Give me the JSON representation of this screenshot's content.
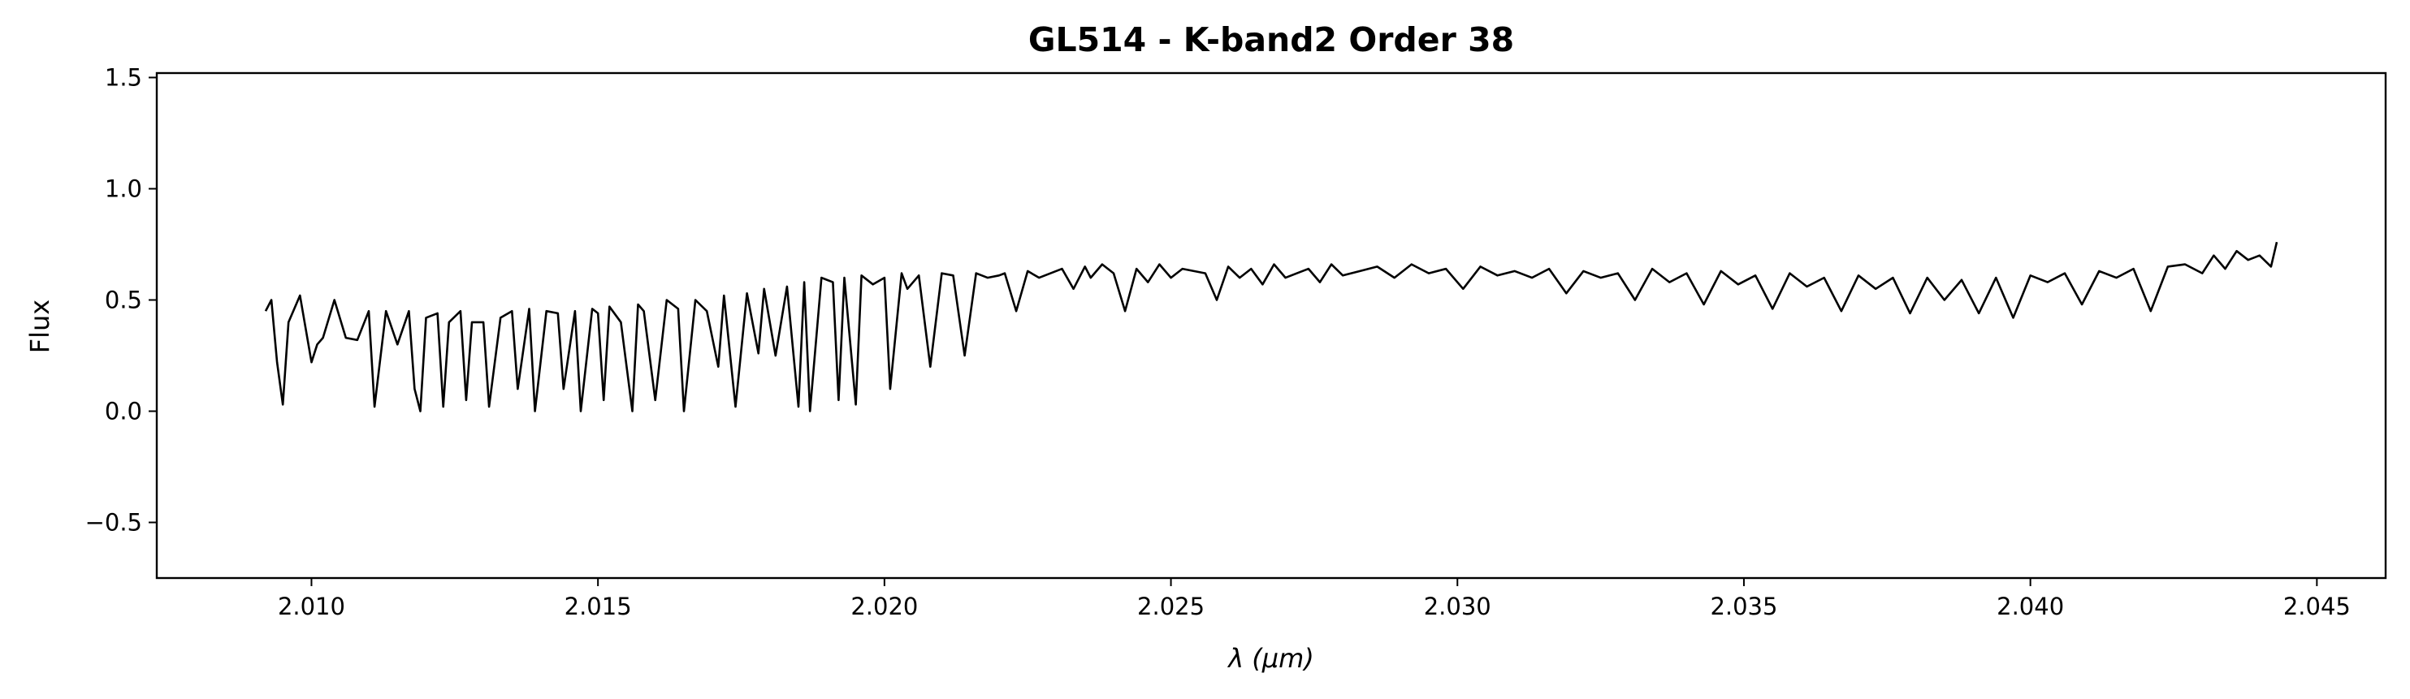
{
  "chart_data": {
    "type": "line",
    "title": "GL514 - K-band2 Order 38",
    "xlabel": "λ (μm)",
    "ylabel": "Flux",
    "xlim": [
      2.0073,
      2.0462
    ],
    "ylim": [
      -0.75,
      1.52
    ],
    "xticks": [
      2.01,
      2.015,
      2.02,
      2.025,
      2.03,
      2.035,
      2.04,
      2.045
    ],
    "xtick_labels": [
      "2.010",
      "2.015",
      "2.020",
      "2.025",
      "2.030",
      "2.035",
      "2.040",
      "2.045"
    ],
    "yticks": [
      -0.5,
      0.0,
      0.5,
      1.0,
      1.5
    ],
    "ytick_labels": [
      "−0.5",
      "0.0",
      "0.5",
      "1.0",
      "1.5"
    ],
    "grid": false,
    "line_color": "#000000",
    "series": [
      {
        "x": [
          2.0092,
          2.0093,
          2.0094,
          2.0095,
          2.0096,
          2.0098,
          2.01,
          2.0101,
          2.0102,
          2.0104,
          2.0106,
          2.0108,
          2.011,
          2.0111,
          2.0113,
          2.0115,
          2.0117,
          2.0118,
          2.0119,
          2.012,
          2.0122,
          2.0123,
          2.0124,
          2.0126,
          2.0127,
          2.0128,
          2.013,
          2.0131,
          2.0133,
          2.0135,
          2.0136,
          2.0138,
          2.0139,
          2.0141,
          2.0143,
          2.0144,
          2.0146,
          2.0147,
          2.0149,
          2.015,
          2.0151,
          2.0152,
          2.0154,
          2.0156,
          2.0157,
          2.0158,
          2.016,
          2.0162,
          2.0164,
          2.0165,
          2.0167,
          2.0169,
          2.0171,
          2.0172,
          2.0174,
          2.0176,
          2.0178,
          2.0179,
          2.0181,
          2.0183,
          2.0185,
          2.0186,
          2.0187,
          2.0189,
          2.0191,
          2.0192,
          2.0193,
          2.0195,
          2.0196,
          2.0198,
          2.02,
          2.0201,
          2.0203,
          2.0204,
          2.0206,
          2.0208,
          2.021,
          2.0212,
          2.0214,
          2.0216,
          2.0218,
          2.022,
          2.0221,
          2.0223,
          2.0225,
          2.0227,
          2.0229,
          2.0231,
          2.0233,
          2.0235,
          2.0236,
          2.0238,
          2.024,
          2.0242,
          2.0244,
          2.0246,
          2.0248,
          2.025,
          2.0252,
          2.0254,
          2.0256,
          2.0258,
          2.026,
          2.0262,
          2.0264,
          2.0266,
          2.0268,
          2.027,
          2.0272,
          2.0274,
          2.0276,
          2.0278,
          2.028,
          2.0283,
          2.0286,
          2.0289,
          2.0292,
          2.0295,
          2.0298,
          2.0301,
          2.0304,
          2.0307,
          2.031,
          2.0313,
          2.0316,
          2.0319,
          2.0322,
          2.0325,
          2.0328,
          2.0331,
          2.0334,
          2.0337,
          2.034,
          2.0343,
          2.0346,
          2.0349,
          2.0352,
          2.0355,
          2.0358,
          2.0361,
          2.0364,
          2.0367,
          2.037,
          2.0373,
          2.0376,
          2.0379,
          2.0382,
          2.0385,
          2.0388,
          2.0391,
          2.0394,
          2.0397,
          2.04,
          2.0403,
          2.0406,
          2.0409,
          2.0412,
          2.0415,
          2.0418,
          2.0421,
          2.0424,
          2.0427,
          2.043,
          2.0432,
          2.0434,
          2.0436,
          2.0438,
          2.044,
          2.0442,
          2.0443
        ],
        "y": [
          0.45,
          0.5,
          0.22,
          0.03,
          0.4,
          0.52,
          0.22,
          0.3,
          0.33,
          0.5,
          0.33,
          0.32,
          0.45,
          0.02,
          0.45,
          0.3,
          0.45,
          0.1,
          0.0,
          0.42,
          0.44,
          0.02,
          0.4,
          0.45,
          0.05,
          0.4,
          0.4,
          0.02,
          0.42,
          0.45,
          0.1,
          0.46,
          0.0,
          0.45,
          0.44,
          0.1,
          0.45,
          0.0,
          0.46,
          0.44,
          0.05,
          0.47,
          0.4,
          0.0,
          0.48,
          0.45,
          0.05,
          0.5,
          0.46,
          0.0,
          0.5,
          0.45,
          0.2,
          0.52,
          0.02,
          0.53,
          0.26,
          0.55,
          0.25,
          0.56,
          0.02,
          0.58,
          0.0,
          0.6,
          0.58,
          0.05,
          0.6,
          0.03,
          0.61,
          0.57,
          0.6,
          0.1,
          0.62,
          0.55,
          0.61,
          0.2,
          0.62,
          0.61,
          0.25,
          0.62,
          0.6,
          0.61,
          0.62,
          0.45,
          0.63,
          0.6,
          0.62,
          0.64,
          0.55,
          0.65,
          0.6,
          0.66,
          0.62,
          0.45,
          0.64,
          0.58,
          0.66,
          0.6,
          0.64,
          0.63,
          0.62,
          0.5,
          0.65,
          0.6,
          0.64,
          0.57,
          0.66,
          0.6,
          0.62,
          0.64,
          0.58,
          0.66,
          0.61,
          0.63,
          0.65,
          0.6,
          0.66,
          0.62,
          0.64,
          0.55,
          0.65,
          0.61,
          0.63,
          0.6,
          0.64,
          0.53,
          0.63,
          0.6,
          0.62,
          0.5,
          0.64,
          0.58,
          0.62,
          0.48,
          0.63,
          0.57,
          0.61,
          0.46,
          0.62,
          0.56,
          0.6,
          0.45,
          0.61,
          0.55,
          0.6,
          0.44,
          0.6,
          0.5,
          0.59,
          0.44,
          0.6,
          0.42,
          0.61,
          0.58,
          0.62,
          0.48,
          0.63,
          0.6,
          0.64,
          0.45,
          0.65,
          0.66,
          0.62,
          0.7,
          0.64,
          0.72,
          0.68,
          0.7,
          0.65,
          0.76
        ]
      }
    ]
  }
}
